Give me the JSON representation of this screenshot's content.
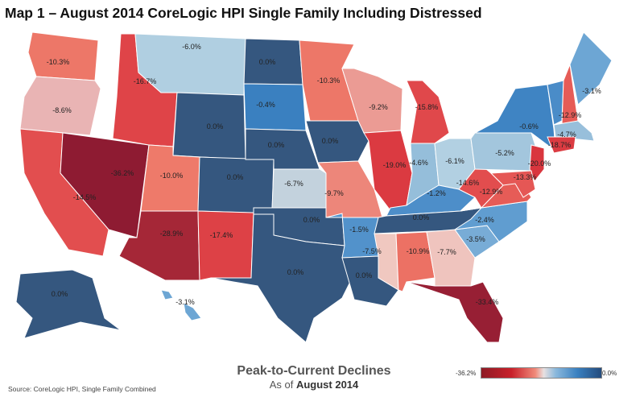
{
  "title": "Map 1 – August 2014 CoreLogic HPI Single Family Including Distressed",
  "source": "Source: CoreLogic HPI, Single Family Combined",
  "legend": {
    "title": "Peak-to-Current Declines",
    "subtitle_prefix": "As of",
    "subtitle_date": "August 2014",
    "min_label": "-36.2%",
    "max_label": "0.0%"
  },
  "states": [
    {
      "id": "WA",
      "value": -10.3,
      "label": "-10.3%"
    },
    {
      "id": "OR",
      "value": -8.6,
      "label": "-8.6%"
    },
    {
      "id": "CA",
      "value": -14.5,
      "label": "-14.5%"
    },
    {
      "id": "NV",
      "value": -36.2,
      "label": "-36.2%"
    },
    {
      "id": "ID",
      "value": -16.7,
      "label": "-16.7%"
    },
    {
      "id": "MT",
      "value": -6.0,
      "label": "-6.0%"
    },
    {
      "id": "WY",
      "value": 0.0,
      "label": "0.0%"
    },
    {
      "id": "UT",
      "value": -10.0,
      "label": "-10.0%"
    },
    {
      "id": "CO",
      "value": 0.0,
      "label": "0.0%"
    },
    {
      "id": "AZ",
      "value": -28.9,
      "label": "-28.9%"
    },
    {
      "id": "NM",
      "value": -17.4,
      "label": "-17.4%"
    },
    {
      "id": "ND",
      "value": 0.0,
      "label": "0.0%"
    },
    {
      "id": "SD",
      "value": -0.4,
      "label": "-0.4%"
    },
    {
      "id": "NE",
      "value": 0.0,
      "label": "0.0%"
    },
    {
      "id": "KS",
      "value": -6.7,
      "label": "-6.7%"
    },
    {
      "id": "OK",
      "value": 0.0,
      "label": "0.0%"
    },
    {
      "id": "TX",
      "value": 0.0,
      "label": "0.0%"
    },
    {
      "id": "MN",
      "value": -10.3,
      "label": "-10.3%"
    },
    {
      "id": "IA",
      "value": 0.0,
      "label": "0.0%"
    },
    {
      "id": "MO",
      "value": -9.7,
      "label": "-9.7%"
    },
    {
      "id": "AR",
      "value": -1.5,
      "label": "-1.5%"
    },
    {
      "id": "LA",
      "value": 0.0,
      "label": "0.0%"
    },
    {
      "id": "WI",
      "value": -9.2,
      "label": "-9.2%"
    },
    {
      "id": "IL",
      "value": -19.0,
      "label": "-19.0%"
    },
    {
      "id": "MI",
      "value": -15.8,
      "label": "-15.8%"
    },
    {
      "id": "IN",
      "value": -4.6,
      "label": "-4.6%"
    },
    {
      "id": "OH",
      "value": -6.1,
      "label": "-6.1%"
    },
    {
      "id": "KY",
      "value": -1.2,
      "label": "-1.2%"
    },
    {
      "id": "TN",
      "value": 0.0,
      "label": "0.0%"
    },
    {
      "id": "MS",
      "value": -7.5,
      "label": "-7.5%"
    },
    {
      "id": "AL",
      "value": -10.9,
      "label": "-10.9%"
    },
    {
      "id": "GA",
      "value": -7.7,
      "label": "-7.7%"
    },
    {
      "id": "FL",
      "value": -33.4,
      "label": "-33.4%"
    },
    {
      "id": "SC",
      "value": -3.5,
      "label": "-3.5%"
    },
    {
      "id": "NC",
      "value": -2.4,
      "label": "-2.4%"
    },
    {
      "id": "VA",
      "value": -12.9,
      "label": "-12.9%"
    },
    {
      "id": "WV",
      "value": -14.6,
      "label": "-14.6%"
    },
    {
      "id": "PA",
      "value": -5.2,
      "label": "-5.2%"
    },
    {
      "id": "NY",
      "value": -0.6,
      "label": "-0.6%"
    },
    {
      "id": "VT",
      "value": -1.0,
      "label": ""
    },
    {
      "id": "NH",
      "value": -12.9,
      "label": "-12.9%"
    },
    {
      "id": "ME",
      "value": -3.1,
      "label": "-3.1%"
    },
    {
      "id": "MA",
      "value": -4.7,
      "label": "-4.7%"
    },
    {
      "id": "CT",
      "value": -18.7,
      "label": "-18.7%"
    },
    {
      "id": "NJ",
      "value": -20.0,
      "label": "-20.0%"
    },
    {
      "id": "MD",
      "value": -13.3,
      "label": "-13.3%"
    },
    {
      "id": "AK",
      "value": 0.0,
      "label": "0.0%"
    },
    {
      "id": "HI",
      "value": -3.1,
      "label": "-3.1%"
    }
  ]
}
